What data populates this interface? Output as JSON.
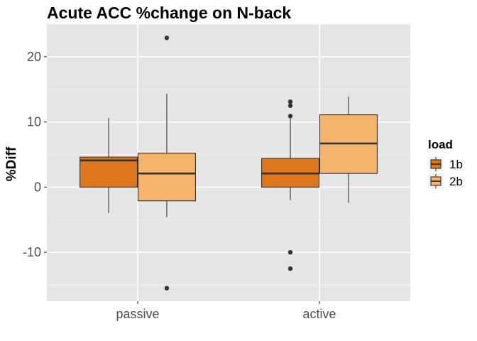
{
  "chart_data": {
    "type": "boxplot",
    "title": "Acute ACC %change on N-back",
    "xlabel": "",
    "ylabel": "%Diff",
    "categories": [
      "passive",
      "active"
    ],
    "ylim": [
      -17.5,
      25
    ],
    "yticks": [
      -10,
      0,
      10,
      20
    ],
    "ytick_labels": [
      "-10",
      "0",
      "10",
      "20"
    ],
    "grid": true,
    "legend": {
      "title": "load",
      "position": "right",
      "entries": [
        "1b",
        "2b"
      ]
    },
    "series": [
      {
        "name": "1b",
        "color": "#dd761c",
        "boxes": [
          {
            "category": "passive",
            "q1": 0.0,
            "median": 4.1,
            "q3": 4.6,
            "whisker_low": -4.0,
            "whisker_high": 10.6,
            "outliers": []
          },
          {
            "category": "active",
            "q1": 0.0,
            "median": 2.1,
            "q3": 4.4,
            "whisker_low": -2.0,
            "whisker_high": 10.9,
            "outliers": [
              13.1,
              12.5,
              10.9,
              -10.0,
              -12.5
            ]
          }
        ]
      },
      {
        "name": "2b",
        "color": "#f4b46c",
        "boxes": [
          {
            "category": "passive",
            "q1": -2.1,
            "median": 2.1,
            "q3": 5.2,
            "whisker_low": -4.6,
            "whisker_high": 14.3,
            "outliers": [
              22.9,
              -15.5
            ]
          },
          {
            "category": "active",
            "q1": 2.1,
            "median": 6.7,
            "q3": 11.1,
            "whisker_low": -2.4,
            "whisker_high": 13.9,
            "outliers": []
          }
        ]
      }
    ]
  }
}
